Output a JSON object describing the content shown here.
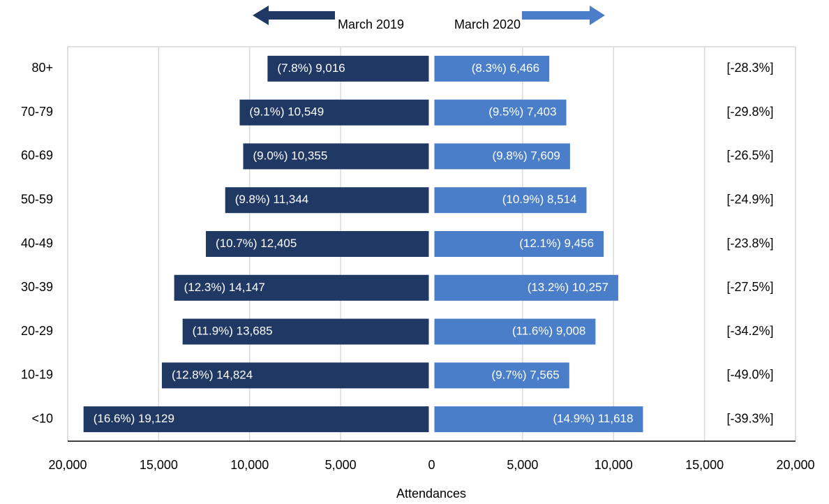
{
  "chart_data": {
    "type": "pyramid",
    "categories": [
      "80+",
      "70-79",
      "60-69",
      "50-59",
      "40-49",
      "30-39",
      "20-29",
      "10-19",
      "<10"
    ],
    "series": [
      {
        "name": "March 2019",
        "color": "#1f3864",
        "side": "left",
        "values": [
          9016,
          10549,
          10355,
          11344,
          12405,
          14147,
          13685,
          14824,
          19129
        ],
        "value_labels": [
          "(7.8%) 9,016",
          "(9.1%) 10,549",
          "(9.0%) 10,355",
          "(9.8%) 11,344",
          "(10.7%) 12,405",
          "(12.3%) 14,147",
          "(11.9%) 13,685",
          "(12.8%) 14,824",
          "(16.6%) 19,129"
        ]
      },
      {
        "name": "March 2020",
        "color": "#4a7ec8",
        "side": "right",
        "values": [
          6466,
          7403,
          7609,
          8514,
          9456,
          10257,
          9008,
          7565,
          11618
        ],
        "value_labels": [
          "(8.3%) 6,466",
          "(9.5%) 7,403",
          "(9.8%) 7,609",
          "(10.9%) 8,514",
          "(12.1%) 9,456",
          "(13.2%) 10,257",
          "(11.6%) 9,008",
          "(9.7%) 7,565",
          "(14.9%) 11,618"
        ]
      }
    ],
    "change_labels": [
      "[-28.3%]",
      "[-29.8%]",
      "[-26.5%]",
      "[-24.9%]",
      "[-23.8%]",
      "[-27.5%]",
      "[-34.2%]",
      "[-49.0%]",
      "[-39.3%]"
    ],
    "x_label": "Attendances",
    "xlim": [
      -20000,
      20000
    ],
    "xticks": [
      {
        "value": -20000,
        "label": "20,000"
      },
      {
        "value": -15000,
        "label": "15,000"
      },
      {
        "value": -10000,
        "label": "10,000"
      },
      {
        "value": -5000,
        "label": "5,000"
      },
      0,
      {
        "value": 5000,
        "label": "5,000"
      },
      {
        "value": 10000,
        "label": "10,000"
      },
      {
        "value": 15000,
        "label": "15,000"
      },
      {
        "value": 20000,
        "label": "20,000"
      }
    ],
    "grid": true
  }
}
